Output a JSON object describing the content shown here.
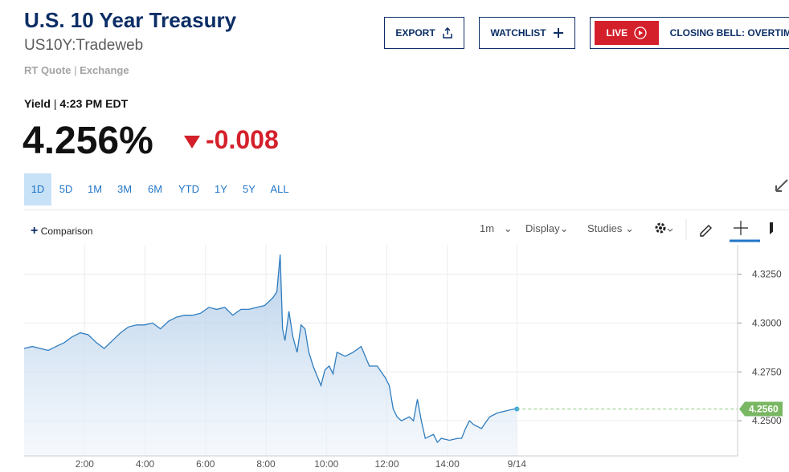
{
  "header": {
    "title": "U.S. 10 Year Treasury",
    "symbol": "US10Y:Tradeweb",
    "quote_source": "RT Quote",
    "exchange": "Exchange",
    "buttons": {
      "export": "EXPORT",
      "watchlist": "WATCHLIST",
      "live": "LIVE",
      "live_show": "CLOSING BELL: OVERTIME"
    }
  },
  "quote": {
    "label": "Yield",
    "time": "4:23 PM EDT",
    "price": "4.256%",
    "change": "-0.008"
  },
  "range_tabs": [
    "1D",
    "5D",
    "1M",
    "3M",
    "6M",
    "YTD",
    "1Y",
    "5Y",
    "ALL"
  ],
  "toolbar": {
    "comparison": "Comparison",
    "interval": "1m",
    "display": "Display",
    "studies": "Studies"
  },
  "chart_data": {
    "type": "area",
    "color": "#2f7dbf",
    "grid": true,
    "x": [
      0,
      0.27,
      0.53,
      0.8,
      1.06,
      1.33,
      1.59,
      1.86,
      2.12,
      2.39,
      2.65,
      2.92,
      3.19,
      3.45,
      3.72,
      3.98,
      4.25,
      4.51,
      4.78,
      5.04,
      5.31,
      5.57,
      5.84,
      6.11,
      6.37,
      6.64,
      6.9,
      7.17,
      7.43,
      7.7,
      7.96,
      8.23,
      8.36,
      8.47,
      8.55,
      8.63,
      8.76,
      8.89,
      9.03,
      9.16,
      9.29,
      9.42,
      9.56,
      9.69,
      9.82,
      9.95,
      10.09,
      10.22,
      10.35,
      10.62,
      10.88,
      11.15,
      11.42,
      11.68,
      11.95,
      12.08,
      12.21,
      12.34,
      12.48,
      12.74,
      12.88,
      13.01,
      13.14,
      13.27,
      13.54,
      13.67,
      13.8,
      14.07,
      14.34,
      14.47,
      14.6,
      14.73,
      14.87,
      15.13,
      15.26,
      15.4,
      15.66,
      15.93,
      16.19,
      16.3
    ],
    "values": [
      4.287,
      4.288,
      4.287,
      4.286,
      4.288,
      4.29,
      4.293,
      4.295,
      4.294,
      4.29,
      4.287,
      4.291,
      4.295,
      4.298,
      4.299,
      4.299,
      4.3,
      4.297,
      4.301,
      4.303,
      4.304,
      4.304,
      4.305,
      4.308,
      4.307,
      4.308,
      4.304,
      4.307,
      4.307,
      4.308,
      4.309,
      4.313,
      4.316,
      4.335,
      4.297,
      4.291,
      4.306,
      4.293,
      4.285,
      4.299,
      4.297,
      4.285,
      4.278,
      4.273,
      4.268,
      4.276,
      4.278,
      4.274,
      4.285,
      4.283,
      4.285,
      4.288,
      4.278,
      4.278,
      4.272,
      4.268,
      4.256,
      4.252,
      4.25,
      4.252,
      4.25,
      4.261,
      4.25,
      4.241,
      4.243,
      4.239,
      4.241,
      4.24,
      4.241,
      4.241,
      4.246,
      4.25,
      4.248,
      4.246,
      4.249,
      4.252,
      4.254,
      4.255,
      4.256,
      4.256
    ],
    "xlim": [
      0,
      23.6
    ],
    "xticks": [
      {
        "value": 2,
        "label": "2:00"
      },
      {
        "value": 4,
        "label": "4:00"
      },
      {
        "value": 6,
        "label": "6:00"
      },
      {
        "value": 8,
        "label": "8:00"
      },
      {
        "value": 10,
        "label": "10:00"
      },
      {
        "value": 12,
        "label": "12:00"
      },
      {
        "value": 14,
        "label": "14:00"
      },
      {
        "value": 16.3,
        "label": "9/14"
      }
    ],
    "ylim": [
      4.232,
      4.34
    ],
    "yticks": [
      {
        "value": 4.25,
        "label": "4.2500"
      },
      {
        "value": 4.275,
        "label": "4.2750"
      },
      {
        "value": 4.3,
        "label": "4.3000"
      },
      {
        "value": 4.325,
        "label": "4.3250"
      }
    ],
    "last_value": {
      "value": 4.256,
      "label": "4.2560"
    }
  }
}
